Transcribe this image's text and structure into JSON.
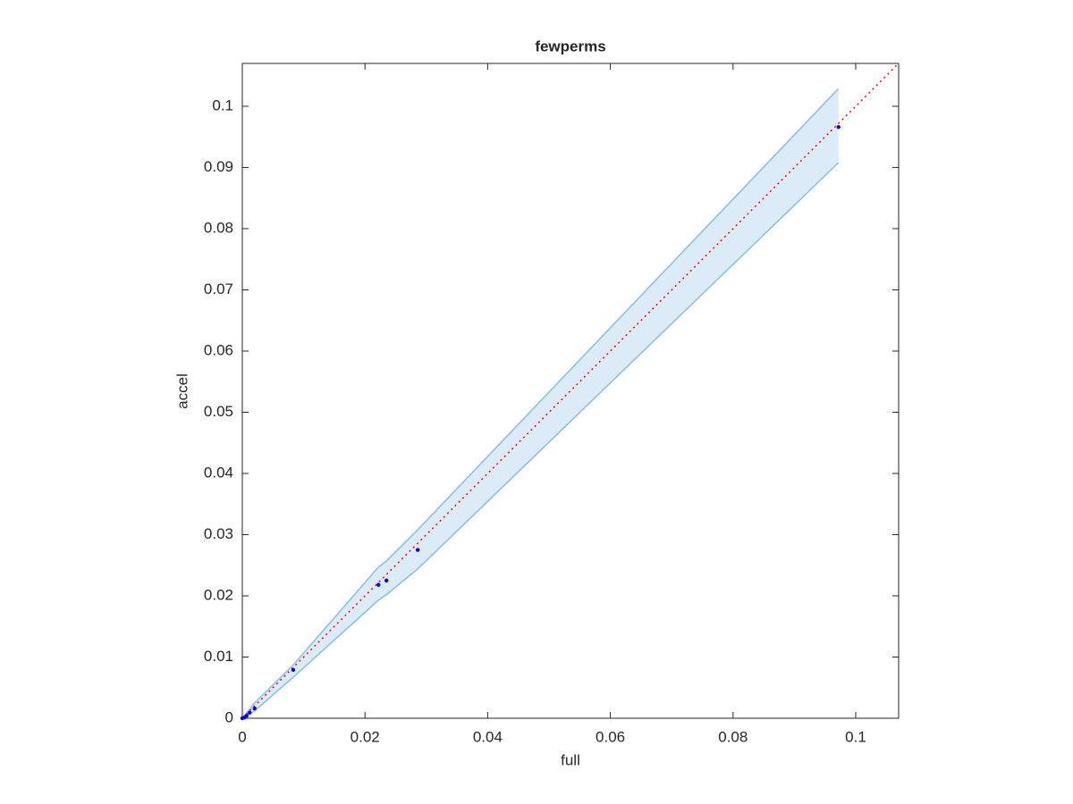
{
  "chart_data": {
    "type": "scatter",
    "title": "fewperms",
    "xlabel": "full",
    "ylabel": "accel",
    "xlim": [
      0,
      0.107
    ],
    "ylim": [
      0,
      0.107
    ],
    "xticks": [
      0,
      0.02,
      0.04,
      0.06,
      0.08,
      0.1
    ],
    "yticks": [
      0,
      0.01,
      0.02,
      0.03,
      0.04,
      0.05,
      0.06,
      0.07,
      0.08,
      0.09,
      0.1
    ],
    "band": {
      "color": "#88bde6",
      "x": [
        0,
        0.002,
        0.0083,
        0.0222,
        0.0235,
        0.0286,
        0.0972
      ],
      "upper": [
        0,
        0.0025,
        0.0087,
        0.0247,
        0.0257,
        0.0308,
        0.1029
      ],
      "lower": [
        0,
        0.0012,
        0.0067,
        0.0193,
        0.0202,
        0.0244,
        0.0908
      ]
    },
    "reference": {
      "color": "#ff0000",
      "x": [
        0,
        0.107
      ],
      "values": [
        0,
        0.107
      ]
    },
    "points": {
      "color": "#0000ff",
      "x": [
        0,
        0.0003,
        0.0007,
        0.0012,
        0.002,
        0.0083,
        0.0222,
        0.0235,
        0.0286,
        0.0972
      ],
      "values": [
        0,
        0.0001,
        0.0004,
        0.0009,
        0.0016,
        0.0079,
        0.0218,
        0.0225,
        0.0275,
        0.0966
      ]
    }
  }
}
